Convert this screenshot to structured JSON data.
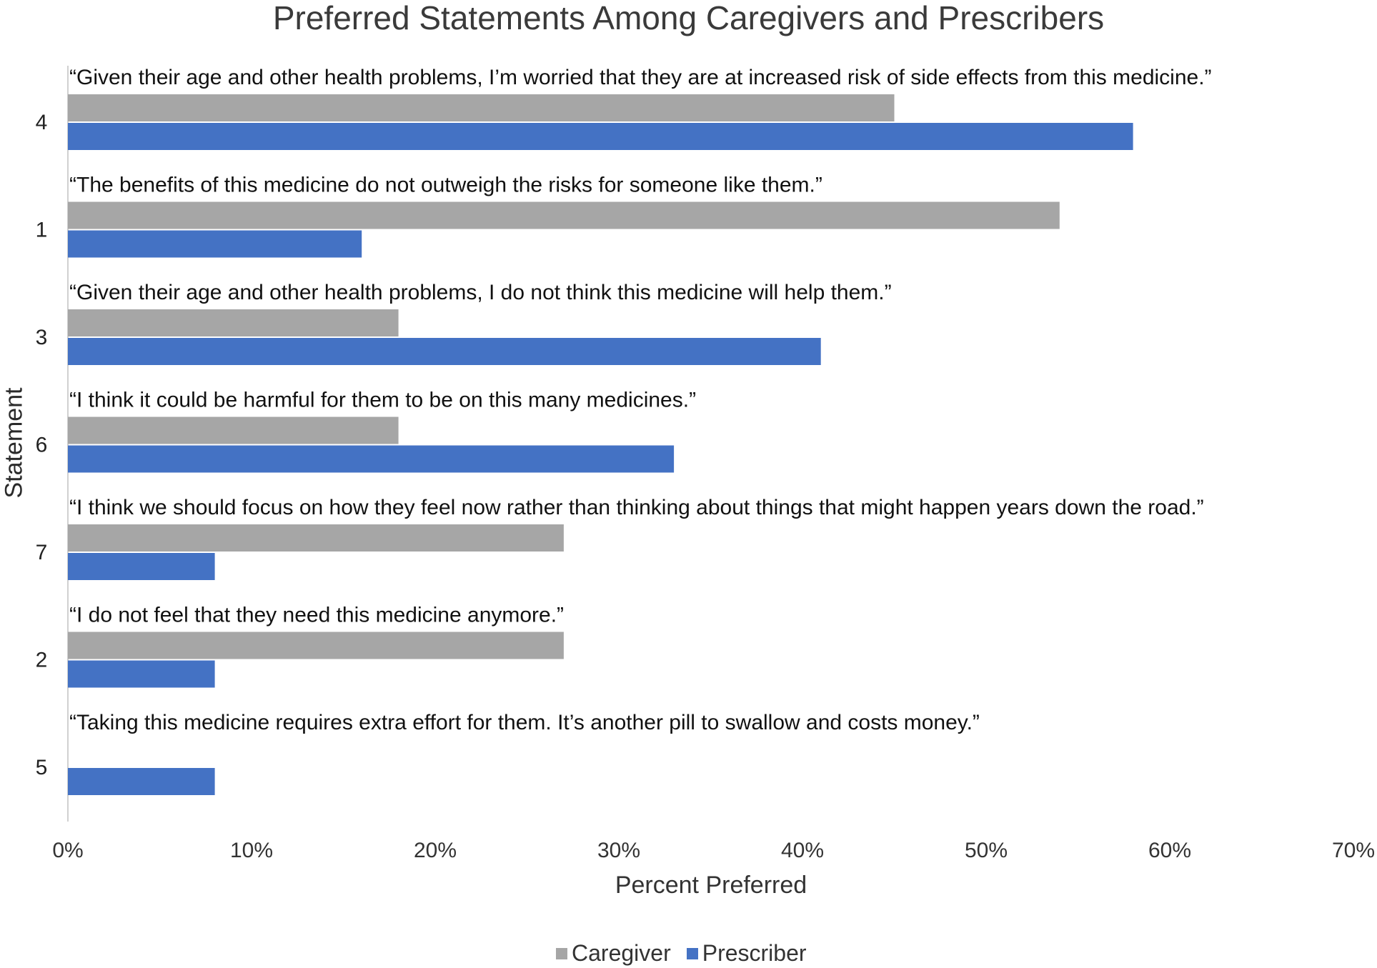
{
  "chart_data": {
    "type": "bar",
    "orientation": "horizontal",
    "title": "Preferred Statements Among Caregivers and Prescribers",
    "xlabel": "Percent Preferred",
    "ylabel": "Statement",
    "xlim": [
      0,
      70
    ],
    "x_ticks": [
      "0%",
      "10%",
      "20%",
      "30%",
      "40%",
      "50%",
      "60%",
      "70%"
    ],
    "legend_position": "bottom",
    "grid": false,
    "categories": [
      "4",
      "1",
      "3",
      "6",
      "7",
      "2",
      "5"
    ],
    "statements": [
      "“Given their age and other health problems, I’m worried that they are at increased risk of side effects from this medicine.”",
      "“The benefits of this medicine do not outweigh the risks for someone like them.”",
      "“Given their age and other health problems, I do not think this medicine will help them.”",
      "“I think it could be harmful for them to be on this many medicines.”",
      "“I think we should focus on how they feel now rather than thinking about things that might happen years down the road.”",
      "“I do not feel that they need this medicine anymore.”",
      "“Taking this medicine requires extra effort for them. It’s another pill to swallow and costs money.”"
    ],
    "series": [
      {
        "name": "Caregiver",
        "color": "#a6a6a6",
        "values": [
          45,
          54,
          18,
          18,
          27,
          27,
          0
        ]
      },
      {
        "name": "Prescriber",
        "color": "#4472c4",
        "values": [
          58,
          16,
          41,
          33,
          8,
          8,
          8
        ]
      }
    ]
  }
}
